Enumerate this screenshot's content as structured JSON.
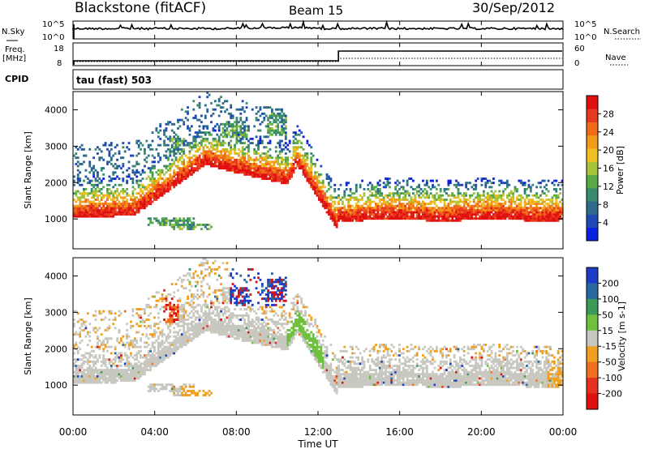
{
  "header": {
    "station": "Blackstone (fitACF)",
    "beam": "Beam 15",
    "date": "30/Sep/2012"
  },
  "side_labels": {
    "nsky": "N.Sky",
    "freq_line1": "Freq.",
    "freq_line2": "[MHz]",
    "cpid": "CPID",
    "nsearch": "N.Search",
    "nave": "Nave"
  },
  "cpid_text": "tau (fast) 503",
  "x_axis": {
    "title": "Time UT",
    "ticks": [
      "00:00",
      "04:00",
      "08:00",
      "12:00",
      "16:00",
      "20:00",
      "00:00"
    ]
  },
  "chart_data": [
    {
      "type": "line",
      "panel": "noise",
      "left_ticks": [
        "10^5",
        "10^0"
      ],
      "right_ticks": [
        "10^5",
        "10^0"
      ]
    },
    {
      "type": "line",
      "panel": "frequency-nave",
      "left_ticks": [
        "18",
        "8"
      ],
      "right_ticks": [
        "60",
        "0"
      ],
      "step_time_ut": "13:00"
    },
    {
      "type": "heatmap",
      "panel": "power",
      "ylabel": "Slant Range [km]",
      "y_ticks": [
        1000,
        2000,
        3000,
        4000
      ],
      "ylim": [
        180,
        4500
      ],
      "xlim": [
        "00:00",
        "24:00"
      ],
      "colorbar": {
        "title": "Power [dB]",
        "ticks": [
          4,
          8,
          12,
          16,
          20,
          24,
          28
        ],
        "range": [
          0,
          32
        ],
        "colors": [
          "#0a1fe0",
          "#1e4ab8",
          "#2e6a8c",
          "#3a8a70",
          "#5aaa46",
          "#a6c43a",
          "#f0c020",
          "#f39a1a",
          "#f06a18",
          "#e83820",
          "#e01010"
        ]
      }
    },
    {
      "type": "heatmap",
      "panel": "velocity",
      "ylabel": "Slant Range [km]",
      "y_ticks": [
        1000,
        2000,
        3000,
        4000
      ],
      "ylim": [
        180,
        4500
      ],
      "xlim": [
        "00:00",
        "24:00"
      ],
      "colorbar": {
        "title": "Velocity [m s-1]",
        "ticks": [
          "200",
          "100",
          "50",
          "15",
          "-15",
          "-50",
          "-100",
          "-200"
        ],
        "colors": [
          "#1a3cc8",
          "#2868a0",
          "#3a9a58",
          "#70c040",
          "#c8c8c0",
          "#f0a020",
          "#f07020",
          "#e83020",
          "#e01010"
        ]
      }
    }
  ]
}
